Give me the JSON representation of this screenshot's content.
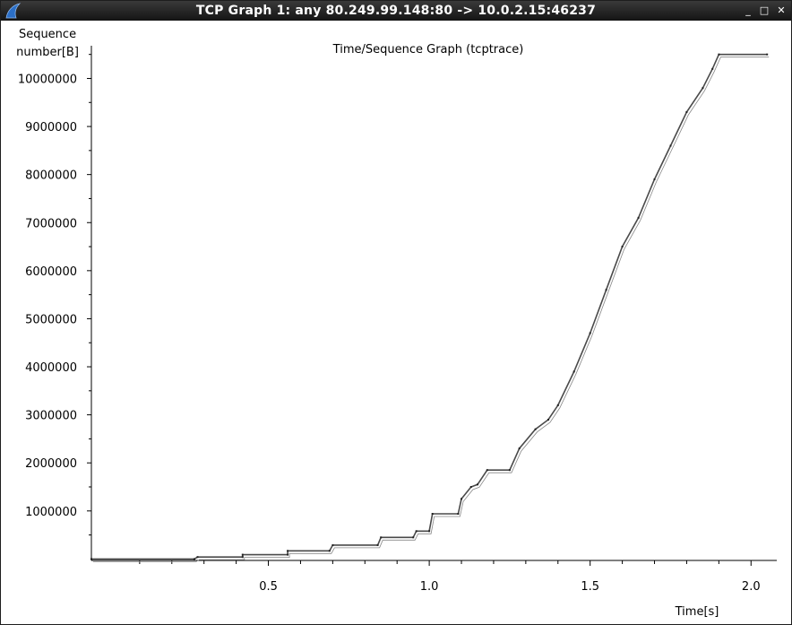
{
  "window": {
    "title": "TCP Graph 1: any 80.249.99.148:80 -> 10.0.2.15:46237",
    "buttons": {
      "minimize": "_",
      "maximize": "□",
      "close": "✕"
    },
    "icon": "wireshark-fin-icon"
  },
  "chart_data": {
    "type": "line",
    "title": "Time/Sequence Graph (tcptrace)",
    "ylabel_line1": "Sequence",
    "ylabel_line2": "number[B]",
    "xlabel": "Time[s]",
    "xlim": [
      -0.05,
      2.08
    ],
    "ylim": [
      -30000,
      10830000
    ],
    "grid": false,
    "x_ticks": [
      "0.5",
      "1.0",
      "1.5",
      "2.0"
    ],
    "y_ticks": [
      "1000000",
      "2000000",
      "3000000",
      "4000000",
      "5000000",
      "6000000",
      "7000000",
      "8000000",
      "9000000",
      "10000000"
    ],
    "series": [
      {
        "x": [
          -0.05,
          0.27,
          0.28,
          0.42,
          0.42,
          0.56,
          0.56,
          0.69,
          0.7,
          0.84,
          0.85,
          0.95,
          0.96,
          1.0,
          1.01,
          1.09,
          1.1,
          1.13,
          1.15,
          1.18,
          1.25,
          1.28,
          1.33,
          1.37,
          1.4,
          1.45,
          1.5,
          1.55,
          1.6,
          1.65,
          1.7,
          1.75,
          1.8,
          1.85,
          1.88,
          1.9,
          2.05
        ],
        "y": [
          0,
          0,
          40000,
          40000,
          90000,
          90000,
          170000,
          170000,
          290000,
          290000,
          450000,
          450000,
          580000,
          580000,
          940000,
          940000,
          1250000,
          1500000,
          1550000,
          1850000,
          1850000,
          2300000,
          2700000,
          2900000,
          3200000,
          3900000,
          4700000,
          5600000,
          6500000,
          7100000,
          7900000,
          8600000,
          9300000,
          9800000,
          10200000,
          10500000,
          10500000
        ]
      }
    ]
  }
}
